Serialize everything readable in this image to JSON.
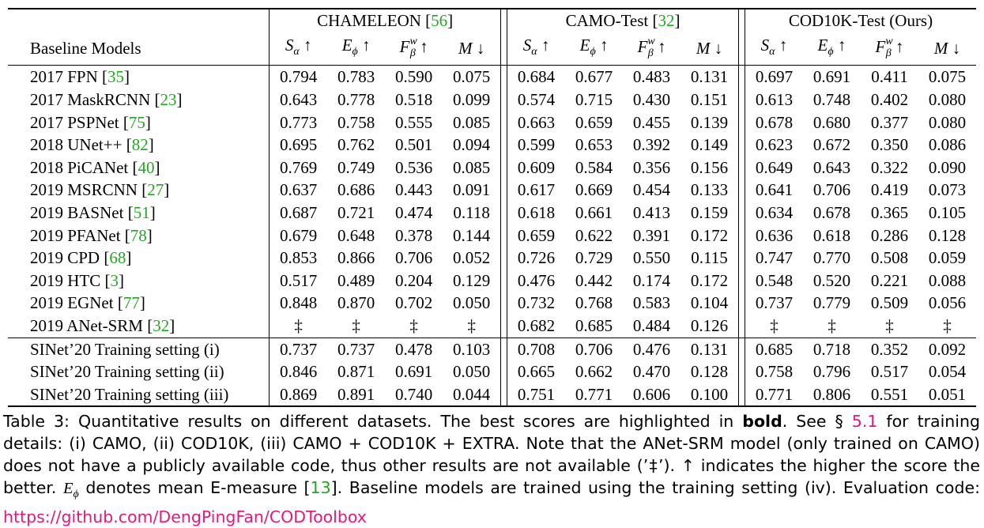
{
  "table": {
    "header_col": "Baseline Models",
    "datasets": [
      {
        "name": "CHAMELEON",
        "cite": "56"
      },
      {
        "name": "CAMO-Test",
        "cite": "32"
      },
      {
        "name": "COD10K-Test (Ours)",
        "cite": ""
      }
    ],
    "metrics": [
      "S",
      "E",
      "F",
      "M"
    ],
    "metric_arrows": [
      "↑",
      "↑",
      "↑",
      "↓"
    ],
    "rows": [
      {
        "label": "2017 FPN",
        "cite": "35",
        "vals": [
          "0.794",
          "0.783",
          "0.590",
          "0.075",
          "0.684",
          "0.677",
          "0.483",
          "0.131",
          "0.697",
          "0.691",
          "0.411",
          "0.075"
        ]
      },
      {
        "label": "2017 MaskRCNN",
        "cite": "23",
        "vals": [
          "0.643",
          "0.778",
          "0.518",
          "0.099",
          "0.574",
          "0.715",
          "0.430",
          "0.151",
          "0.613",
          "0.748",
          "0.402",
          "0.080"
        ]
      },
      {
        "label": "2017 PSPNet",
        "cite": "75",
        "vals": [
          "0.773",
          "0.758",
          "0.555",
          "0.085",
          "0.663",
          "0.659",
          "0.455",
          "0.139",
          "0.678",
          "0.680",
          "0.377",
          "0.080"
        ]
      },
      {
        "label": "2018 UNet++",
        "cite": "82",
        "vals": [
          "0.695",
          "0.762",
          "0.501",
          "0.094",
          "0.599",
          "0.653",
          "0.392",
          "0.149",
          "0.623",
          "0.672",
          "0.350",
          "0.086"
        ]
      },
      {
        "label": "2018 PiCANet",
        "cite": "40",
        "vals": [
          "0.769",
          "0.749",
          "0.536",
          "0.085",
          "0.609",
          "0.584",
          "0.356",
          "0.156",
          "0.649",
          "0.643",
          "0.322",
          "0.090"
        ]
      },
      {
        "label": "2019 MSRCNN",
        "cite": "27",
        "vals": [
          "0.637",
          "0.686",
          "0.443",
          "0.091",
          "0.617",
          "0.669",
          "0.454",
          "0.133",
          "0.641",
          "0.706",
          "0.419",
          "0.073"
        ]
      },
      {
        "label": "2019 BASNet",
        "cite": "51",
        "vals": [
          "0.687",
          "0.721",
          "0.474",
          "0.118",
          "0.618",
          "0.661",
          "0.413",
          "0.159",
          "0.634",
          "0.678",
          "0.365",
          "0.105"
        ]
      },
      {
        "label": "2019 PFANet",
        "cite": "78",
        "vals": [
          "0.679",
          "0.648",
          "0.378",
          "0.144",
          "0.659",
          "0.622",
          "0.391",
          "0.172",
          "0.636",
          "0.618",
          "0.286",
          "0.128"
        ]
      },
      {
        "label": "2019 CPD",
        "cite": "68",
        "vals": [
          "0.853",
          "0.866",
          "0.706",
          "0.052",
          "0.726",
          "0.729",
          "0.550",
          "0.115",
          "0.747",
          "0.770",
          "0.508",
          "0.059"
        ]
      },
      {
        "label": "2019 HTC",
        "cite": "3",
        "vals": [
          "0.517",
          "0.489",
          "0.204",
          "0.129",
          "0.476",
          "0.442",
          "0.174",
          "0.172",
          "0.548",
          "0.520",
          "0.221",
          "0.088"
        ]
      },
      {
        "label": "2019 EGNet",
        "cite": "77",
        "vals": [
          "0.848",
          "0.870",
          "0.702",
          "0.050",
          "0.732",
          "0.768",
          "0.583",
          "0.104",
          "0.737",
          "0.779",
          "0.509",
          "0.056"
        ]
      },
      {
        "label": "2019 ANet-SRM",
        "cite": "32",
        "vals": [
          "‡",
          "‡",
          "‡",
          "‡",
          "0.682",
          "0.685",
          "0.484",
          "0.126",
          "‡",
          "‡",
          "‡",
          "‡"
        ]
      }
    ],
    "sinet_rows": [
      {
        "label": "SINet’20 Training setting (i)",
        "bold": false,
        "vals": [
          "0.737",
          "0.737",
          "0.478",
          "0.103",
          "0.708",
          "0.706",
          "0.476",
          "0.131",
          "0.685",
          "0.718",
          "0.352",
          "0.092"
        ]
      },
      {
        "label": "SINet’20 Training setting (ii)",
        "bold": false,
        "vals": [
          "0.846",
          "0.871",
          "0.691",
          "0.050",
          "0.665",
          "0.662",
          "0.470",
          "0.128",
          "0.758",
          "0.796",
          "0.517",
          "0.054"
        ]
      },
      {
        "label": "SINet’20 Training setting (iii)",
        "bold": true,
        "vals": [
          "0.869",
          "0.891",
          "0.740",
          "0.044",
          "0.751",
          "0.771",
          "0.606",
          "0.100",
          "0.771",
          "0.806",
          "0.551",
          "0.051"
        ]
      }
    ]
  },
  "caption": {
    "p1": "Table 3: Quantitative results on different datasets. The best scores are highlighted in ",
    "bold_word": "bold",
    "p2": ". See § ",
    "sec_ref": "5.1",
    "p3": " for training details: (i) CAMO, (ii) COD10K, (iii) CAMO + COD10K + EXTRA. Note that the ANet-SRM model (only trained on CAMO) does not have a publicly available code, thus other results are not available (’‡’). ↑ indicates the higher the score the better. ",
    "emeasure_sym": "E",
    "p4": " denotes mean E-measure [",
    "cite": "13",
    "p5": "]. Baseline models are trained using the training setting (iv). Evaluation code: ",
    "link": "https://github.com/DengPingFan/CODToolbox"
  }
}
